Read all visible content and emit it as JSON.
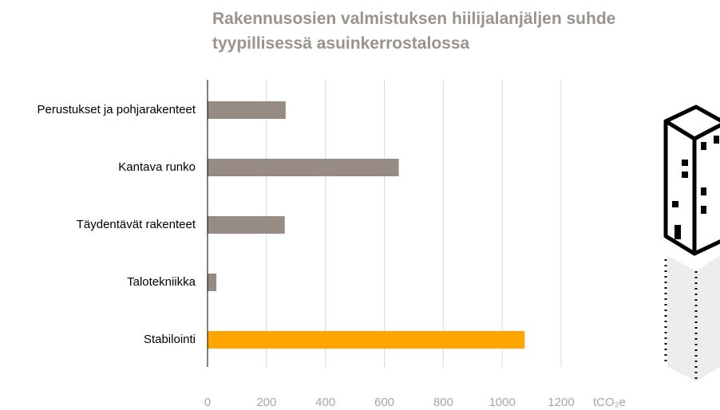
{
  "chart_data": {
    "type": "hbar",
    "title": "Rakennusosien valmistuksen hiilijalanjäljen suhde tyypillisessä asuinkerrostalossa",
    "x_label": "tCO₂e",
    "categories": [
      "Perustukset ja pohjarakenteet",
      "Kantava runko",
      "Täydentävät rakenteet",
      "Talotekniikka",
      "Stabilointi"
    ],
    "values": [
      265,
      649,
      262,
      30,
      1076
    ],
    "colors": [
      "#968c84",
      "#968c84",
      "#968c84",
      "#968c84",
      "#ffa500"
    ],
    "xlim": [
      0,
      1200
    ],
    "xticks": [
      0,
      200,
      400,
      600,
      800,
      1000,
      1200
    ],
    "grid": true
  }
}
